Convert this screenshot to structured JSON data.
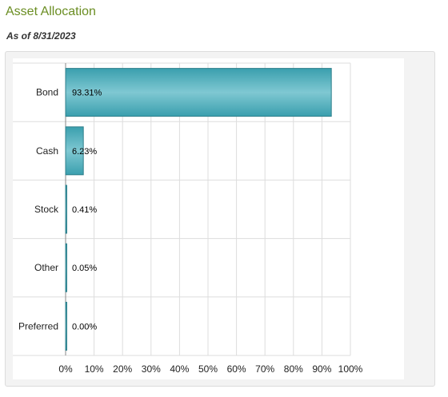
{
  "header": {
    "title": "Asset Allocation",
    "subtitle": "As of 8/31/2023"
  },
  "colors": {
    "bar_fill_light": "#7fc8d2",
    "bar_fill_dark": "#3a9fae",
    "bar_stroke": "#2f7f8b",
    "grid": "#dddddd",
    "axis": "#888888",
    "title": "#6b8e23"
  },
  "chart_data": {
    "type": "bar",
    "orientation": "horizontal",
    "title": "",
    "xlabel": "",
    "ylabel": "",
    "categories": [
      "Bond",
      "Cash",
      "Stock",
      "Other",
      "Preferred"
    ],
    "values": [
      93.31,
      6.23,
      0.41,
      0.05,
      0.0
    ],
    "data_labels": [
      "93.31%",
      "6.23%",
      "0.41%",
      "0.05%",
      "0.00%"
    ],
    "xlim": [
      0,
      100
    ],
    "x_ticks": [
      0,
      10,
      20,
      30,
      40,
      50,
      60,
      70,
      80,
      90,
      100
    ],
    "x_tick_labels": [
      "0%",
      "10%",
      "20%",
      "30%",
      "40%",
      "50%",
      "60%",
      "70%",
      "80%",
      "90%",
      "100%"
    ],
    "grid": true,
    "legend": "none"
  }
}
